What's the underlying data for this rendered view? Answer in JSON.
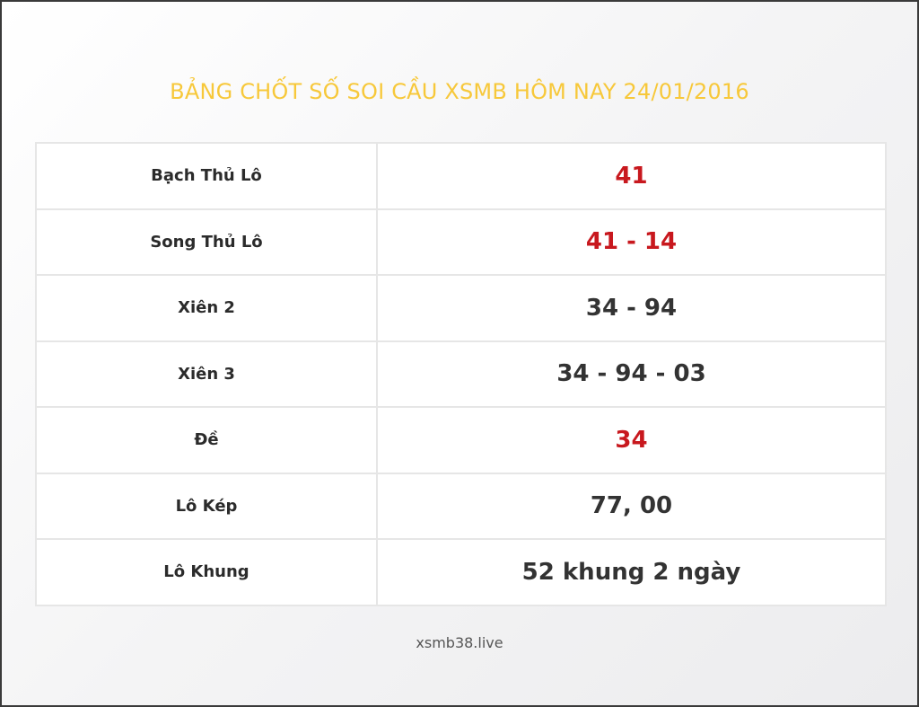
{
  "title": "BẢNG CHỐT SỐ SOI CẦU XSMB HÔM NAY 24/01/2016",
  "rows": [
    {
      "label": "Bạch Thủ Lô",
      "value": "41",
      "highlight": true
    },
    {
      "label": "Song Thủ Lô",
      "value": "41 - 14",
      "highlight": true
    },
    {
      "label": "Xiên 2",
      "value": "34 - 94",
      "highlight": false
    },
    {
      "label": "Xiên 3",
      "value": "34 - 94 - 03",
      "highlight": false
    },
    {
      "label": "Đề",
      "value": "34",
      "highlight": true
    },
    {
      "label": "Lô Kép",
      "value": "77, 00",
      "highlight": false
    },
    {
      "label": "Lô Khung",
      "value": "52 khung 2 ngày",
      "highlight": false
    }
  ],
  "footer": "xsmb38.live",
  "colors": {
    "title": "#f7c83a",
    "highlight": "#c8181e",
    "text": "#333333"
  }
}
